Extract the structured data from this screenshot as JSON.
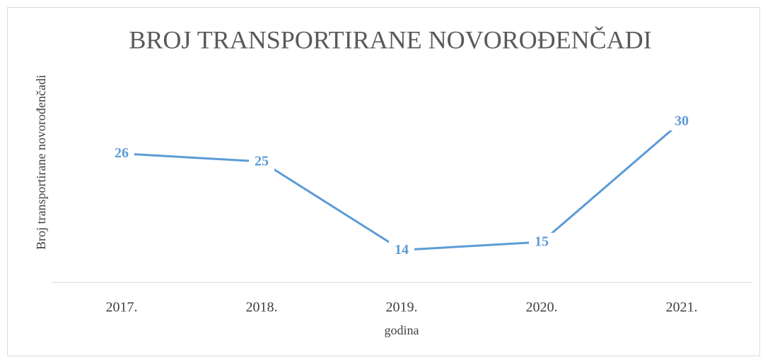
{
  "chart_data": {
    "type": "line",
    "title": "BROJ TRANSPORTIRANE NOVOROĐENČADI",
    "x_label": "godina",
    "y_label": "Broj transportirane novorođenčadi",
    "categories": [
      "2017.",
      "2018.",
      "2019.",
      "2020.",
      "2021."
    ],
    "values": [
      26,
      25,
      14,
      15,
      30
    ],
    "color": "#5b9bd5",
    "ylim": [
      10,
      35
    ]
  }
}
